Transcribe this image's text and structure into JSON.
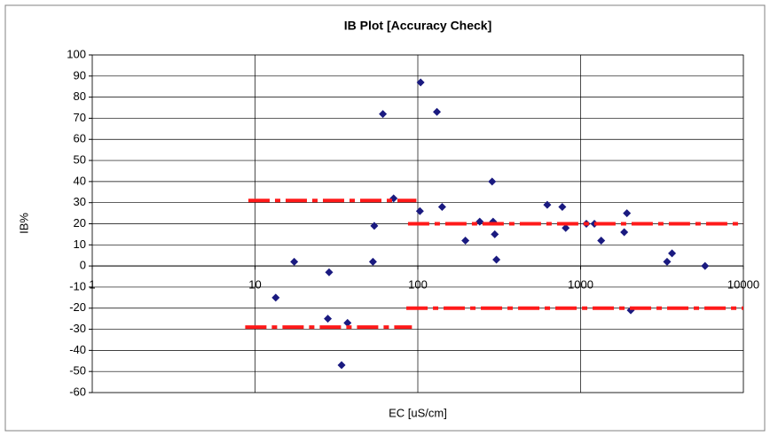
{
  "chart_data": {
    "type": "scatter",
    "title": "IB Plot [Accuracy Check]",
    "xlabel": "EC [uS/cm]",
    "ylabel": "IB%",
    "xscale": "log",
    "xlim": [
      1,
      10000
    ],
    "xticks": [
      1,
      10,
      100,
      1000,
      10000
    ],
    "ylim": [
      -60,
      100
    ],
    "yticks": [
      100,
      90,
      80,
      70,
      60,
      50,
      40,
      30,
      20,
      10,
      0,
      -10,
      -20,
      -30,
      -40,
      -50,
      -60
    ],
    "grid": true,
    "series": [
      {
        "type": "scatter",
        "color": "#1a1a80",
        "x": [
          13.4,
          17.4,
          28.5,
          28,
          37,
          34,
          61,
          54,
          53,
          71,
          104,
          103,
          131,
          141,
          196,
          240,
          286,
          290,
          297,
          304,
          624,
          772,
          810,
          1085,
          1215,
          1338,
          1853,
          1925,
          2033,
          3398,
          3645,
          5814
        ],
        "values": [
          -15,
          2,
          -3,
          -25,
          -27,
          -47,
          72,
          19,
          2,
          32,
          87,
          26,
          73,
          28,
          12,
          21,
          40,
          21,
          15,
          3,
          29,
          28,
          18,
          20,
          20,
          12,
          16,
          25,
          -21,
          2,
          6,
          0
        ]
      },
      {
        "type": "line",
        "color": "#ff1a1a",
        "x": [
          9.1,
          98
        ],
        "values": [
          31,
          31
        ]
      },
      {
        "type": "line",
        "color": "#ff1a1a",
        "x": [
          87,
          10000
        ],
        "values": [
          20,
          20
        ]
      },
      {
        "type": "line",
        "color": "#ff1a1a",
        "x": [
          8.7,
          92
        ],
        "values": [
          -29,
          -29
        ]
      },
      {
        "type": "line",
        "color": "#ff1a1a",
        "x": [
          85,
          10000
        ],
        "values": [
          -20,
          -20
        ]
      }
    ]
  }
}
